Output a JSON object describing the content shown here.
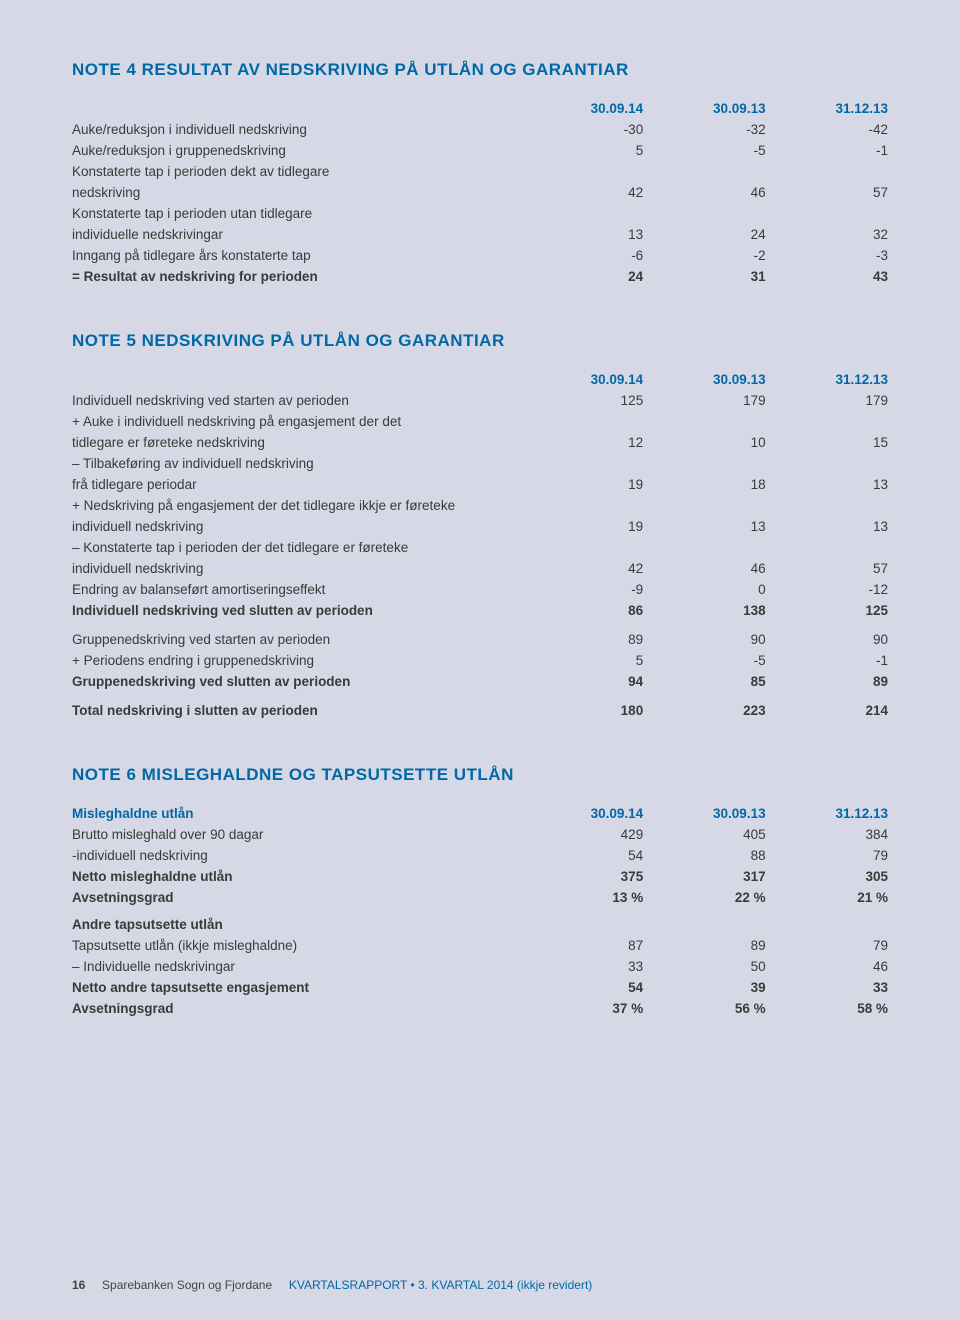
{
  "note4": {
    "title": "NOTE 4  RESULTAT AV  NEDSKRIVING PÅ UTLÅN OG GARANTIAR",
    "cols": [
      "30.09.14",
      "30.09.13",
      "31.12.13"
    ],
    "rows": [
      {
        "label": "Auke/reduksjon i individuell nedskriving",
        "v": [
          "-30",
          "-32",
          "-42"
        ],
        "bold": false
      },
      {
        "label": "Auke/reduksjon i gruppenedskriving",
        "v": [
          "5",
          "-5",
          "-1"
        ],
        "bold": false
      },
      {
        "label": "Konstaterte tap i perioden dekt av tidlegare",
        "v": [
          "",
          "",
          ""
        ],
        "bold": false
      },
      {
        "label": "nedskriving",
        "v": [
          "42",
          "46",
          "57"
        ],
        "bold": false
      },
      {
        "label": "Konstaterte tap i perioden utan tidlegare",
        "v": [
          "",
          "",
          ""
        ],
        "bold": false
      },
      {
        "label": "individuelle nedskrivingar",
        "v": [
          "13",
          "24",
          "32"
        ],
        "bold": false
      },
      {
        "label": "Inngang på tidlegare års konstaterte tap",
        "v": [
          "-6",
          "-2",
          "-3"
        ],
        "bold": false
      },
      {
        "label": "= Resultat av nedskriving for perioden",
        "v": [
          "24",
          "31",
          "43"
        ],
        "bold": true
      }
    ]
  },
  "note5": {
    "title": "NOTE 5  NEDSKRIVING PÅ UTLÅN OG GARANTIAR",
    "cols": [
      "30.09.14",
      "30.09.13",
      "31.12.13"
    ],
    "rows1": [
      {
        "label": "Individuell nedskriving ved starten av perioden",
        "v": [
          "125",
          "179",
          "179"
        ],
        "bold": false
      },
      {
        "label": " + Auke i individuell  nedskriving på engasjement der det",
        "v": [
          "",
          "",
          ""
        ],
        "bold": false
      },
      {
        "label": "tidlegare er føreteke nedskriving",
        "v": [
          "12",
          "10",
          "15"
        ],
        "bold": false
      },
      {
        "label": "– Tilbakeføring av individuell nedskriving",
        "v": [
          "",
          "",
          ""
        ],
        "bold": false
      },
      {
        "label": "frå tidlegare periodar",
        "v": [
          "19",
          "18",
          "13"
        ],
        "bold": false
      },
      {
        "label": "+ Nedskriving på engasjement der det tidlegare ikkje er føreteke",
        "v": [
          "",
          "",
          ""
        ],
        "bold": false
      },
      {
        "label": "individuell nedskriving",
        "v": [
          "19",
          "13",
          "13"
        ],
        "bold": false
      },
      {
        "label": "– Konstaterte tap i perioden der det tidlegare er føreteke",
        "v": [
          "",
          "",
          ""
        ],
        "bold": false
      },
      {
        "label": "individuell nedskriving",
        "v": [
          "42",
          "46",
          "57"
        ],
        "bold": false
      },
      {
        "label": "Endring av balanseført amortiseringseffekt",
        "v": [
          "-9",
          "0",
          "-12"
        ],
        "bold": false
      },
      {
        "label": "Individuell nedskriving ved slutten av perioden",
        "v": [
          "86",
          "138",
          "125"
        ],
        "bold": true
      }
    ],
    "rows2": [
      {
        "label": "Gruppenedskriving ved starten av perioden",
        "v": [
          "89",
          "90",
          "90"
        ],
        "bold": false
      },
      {
        "label": " + Periodens endring i gruppenedskriving",
        "v": [
          "5",
          "-5",
          "-1"
        ],
        "bold": false
      },
      {
        "label": "Gruppenedskriving ved slutten av perioden",
        "v": [
          "94",
          "85",
          "89"
        ],
        "bold": true
      }
    ],
    "rows3": [
      {
        "label": "Total nedskriving i slutten av perioden",
        "v": [
          "180",
          "223",
          "214"
        ],
        "bold": true
      }
    ]
  },
  "note6": {
    "title": "NOTE 6  MISLEGHALDNE OG TAPSUTSETTE UTLÅN",
    "cols": [
      "30.09.14",
      "30.09.13",
      "31.12.13"
    ],
    "row_header": "Misleghaldne utlån",
    "rows1": [
      {
        "label": "Brutto misleghald over 90 dagar",
        "v": [
          "429",
          "405",
          "384"
        ],
        "bold": false
      },
      {
        "label": "-individuell nedskriving",
        "v": [
          "54",
          "88",
          "79"
        ],
        "bold": false
      },
      {
        "label": "Netto misleghaldne utlån",
        "v": [
          "375",
          "317",
          "305"
        ],
        "bold": true
      },
      {
        "label": "Avsetningsgrad",
        "v": [
          "13 %",
          "22 %",
          "21 %"
        ],
        "bold": true
      }
    ],
    "sub_header": "Andre tapsutsette utlån",
    "rows2": [
      {
        "label": "Tapsutsette utlån (ikkje misleghaldne)",
        "v": [
          "87",
          "89",
          "79"
        ],
        "bold": false
      },
      {
        "label": "– Individuelle nedskrivingar",
        "v": [
          "33",
          "50",
          "46"
        ],
        "bold": false
      },
      {
        "label": "Netto andre tapsutsette engasjement",
        "v": [
          "54",
          "39",
          "33"
        ],
        "bold": true
      },
      {
        "label": "Avsetningsgrad",
        "v": [
          "37 %",
          "56 %",
          "58 %"
        ],
        "bold": true
      }
    ]
  },
  "footer": {
    "page": "16",
    "brand": "Sparebanken Sogn og Fjordane",
    "rest": "KVARTALSRAPPORT • 3. KVARTAL 2014 (ikkje revidert)"
  },
  "layout": {
    "col_widths": [
      "55%",
      "15%",
      "15%",
      "15%"
    ]
  }
}
